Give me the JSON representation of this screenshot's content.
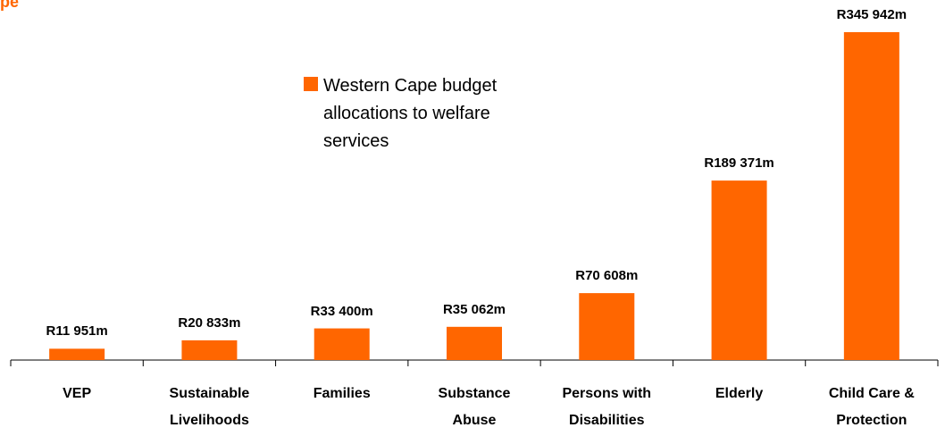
{
  "chart_data": {
    "type": "bar",
    "title": "pe",
    "categories": [
      "VEP",
      "Sustainable Livelihoods",
      "Families",
      "Substance Abuse",
      "Persons with Disabilities",
      "Elderly",
      "Child Care & Protection"
    ],
    "series": [
      {
        "name": "Western Cape budget allocations to welfare services",
        "color": "#ff6600",
        "values": [
          11951,
          20833,
          33400,
          35062,
          70608,
          189371,
          345942
        ],
        "value_labels": [
          "R11 951m",
          "R20 833m",
          "R33 400m",
          "R35 062m",
          "R70 608m",
          "R189 371m",
          "R345 942m"
        ]
      }
    ]
  }
}
